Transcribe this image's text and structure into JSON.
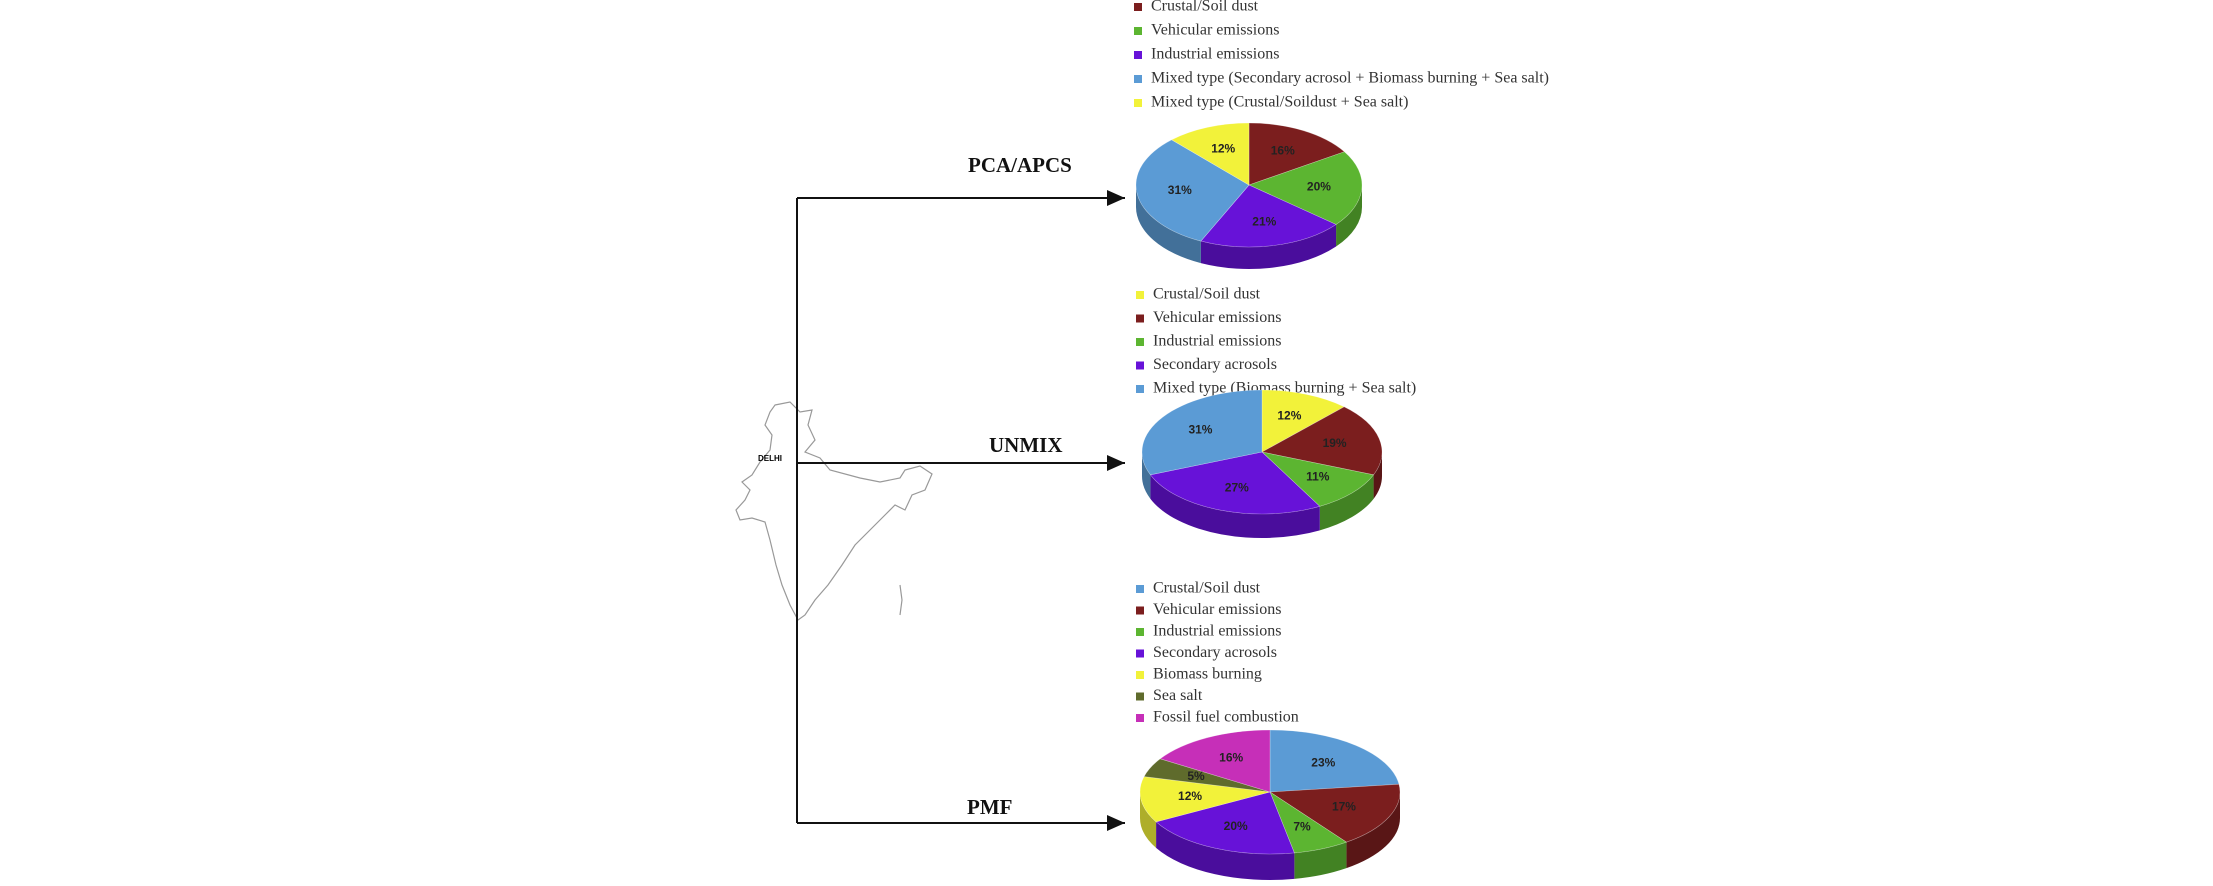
{
  "chart_data": [
    {
      "type": "pie",
      "title": "PCA/APCS",
      "categories": [
        "Crustal/Soil dust",
        "Vehicular emissions",
        "Industrial emissions",
        "Mixed type (Secondary acrosol + Biomass burning + Sea salt)",
        "Mixed type (Crustal/Soildust + Sea salt)"
      ],
      "values": [
        16,
        20,
        21,
        31,
        12
      ],
      "value_labels": [
        "16%",
        "20%",
        "21%",
        "31%",
        "12%"
      ],
      "colors": [
        "#7b1e1e",
        "#5cb531",
        "#6712d8",
        "#5b9bd5",
        "#f2f23a"
      ]
    },
    {
      "type": "pie",
      "title": "UNMIX",
      "categories": [
        "Crustal/Soil dust",
        "Vehicular emissions",
        "Industrial emissions",
        "Secondary acrosols",
        "Mixed type (Biomass burning + Sea salt)"
      ],
      "values": [
        12,
        19,
        11,
        27,
        31
      ],
      "value_labels": [
        "12%",
        "19%",
        "11%",
        "27%",
        "31%"
      ],
      "colors": [
        "#f2f23a",
        "#7b1e1e",
        "#5cb531",
        "#6712d8",
        "#5b9bd5"
      ]
    },
    {
      "type": "pie",
      "title": "PMF",
      "categories": [
        "Crustal/Soil dust",
        "Vehicular emissions",
        "Industrial emissions",
        "Secondary acrosols",
        "Biomass burning",
        "Sea salt",
        "Fossil fuel combustion"
      ],
      "values": [
        23,
        17,
        7,
        20,
        12,
        5,
        16
      ],
      "value_labels": [
        "23%",
        "17%",
        "7%",
        "20%",
        "12%",
        "5%",
        "16%"
      ],
      "colors": [
        "#5b9bd5",
        "#7b1e1e",
        "#5cb531",
        "#6712d8",
        "#f2f23a",
        "#5f6b2c",
        "#c62fb8"
      ]
    }
  ],
  "map": {
    "label": "DELHI"
  }
}
